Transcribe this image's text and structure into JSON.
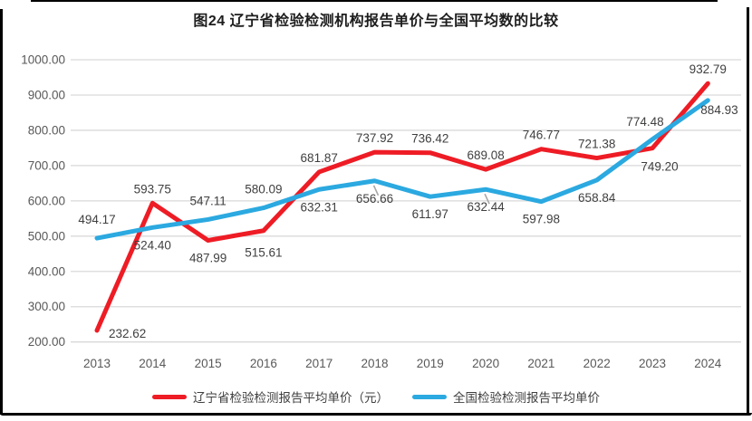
{
  "title": "图24 辽宁省检验检测机构报告单价与全国平均数的比较",
  "chart_data": {
    "type": "line",
    "title": "图24 辽宁省检验检测机构报告单价与全国平均数的比较",
    "categories": [
      "2013",
      "2014",
      "2015",
      "2016",
      "2017",
      "2018",
      "2019",
      "2020",
      "2021",
      "2022",
      "2023",
      "2024"
    ],
    "series": [
      {
        "name": "辽宁省检验检测报告平均单价（元）",
        "color": "#EE1C25",
        "values": [
          232.62,
          593.75,
          487.99,
          515.61,
          681.87,
          737.92,
          736.42,
          689.08,
          746.77,
          721.38,
          749.2,
          932.79
        ],
        "label_pos": [
          "right",
          "above",
          "below",
          "below-far",
          "above",
          "above",
          "above",
          "above",
          "above",
          "above",
          "below-right",
          "above"
        ],
        "leader_indices": []
      },
      {
        "name": "全国检验检测报告平均单价",
        "color": "#2BA9E0",
        "values": [
          494.17,
          524.4,
          547.11,
          580.09,
          632.31,
          656.66,
          611.97,
          632.44,
          597.98,
          658.84,
          774.48,
          884.93
        ],
        "label_pos": [
          "above-far",
          "below",
          "above-far",
          "above-far",
          "below",
          "below",
          "below",
          "below",
          "below",
          "below",
          "above-left",
          "right-low"
        ],
        "leader_indices": [
          5,
          7
        ]
      }
    ],
    "ylim": [
      200,
      1000
    ],
    "y_tick_step": 100,
    "y_ticks": [
      "1000.00",
      "900.00",
      "800.00",
      "700.00",
      "600.00",
      "500.00",
      "400.00",
      "300.00",
      "200.00"
    ],
    "grid": true,
    "legend_position": "bottom",
    "xlabel": "",
    "ylabel": "",
    "colors": {
      "gridline": "#D9D9D9",
      "axis_text": "#595959",
      "data_label": "#3F3F3F",
      "leader_line": "#A6A6A6",
      "frame_border": "#000000"
    }
  },
  "legend": {
    "items": [
      {
        "label": "辽宁省检验检测报告平均单价（元）",
        "swatch_color": "#EE1C25"
      },
      {
        "label": "全国检验检测报告平均单价",
        "swatch_color": "#2BA9E0"
      }
    ]
  }
}
